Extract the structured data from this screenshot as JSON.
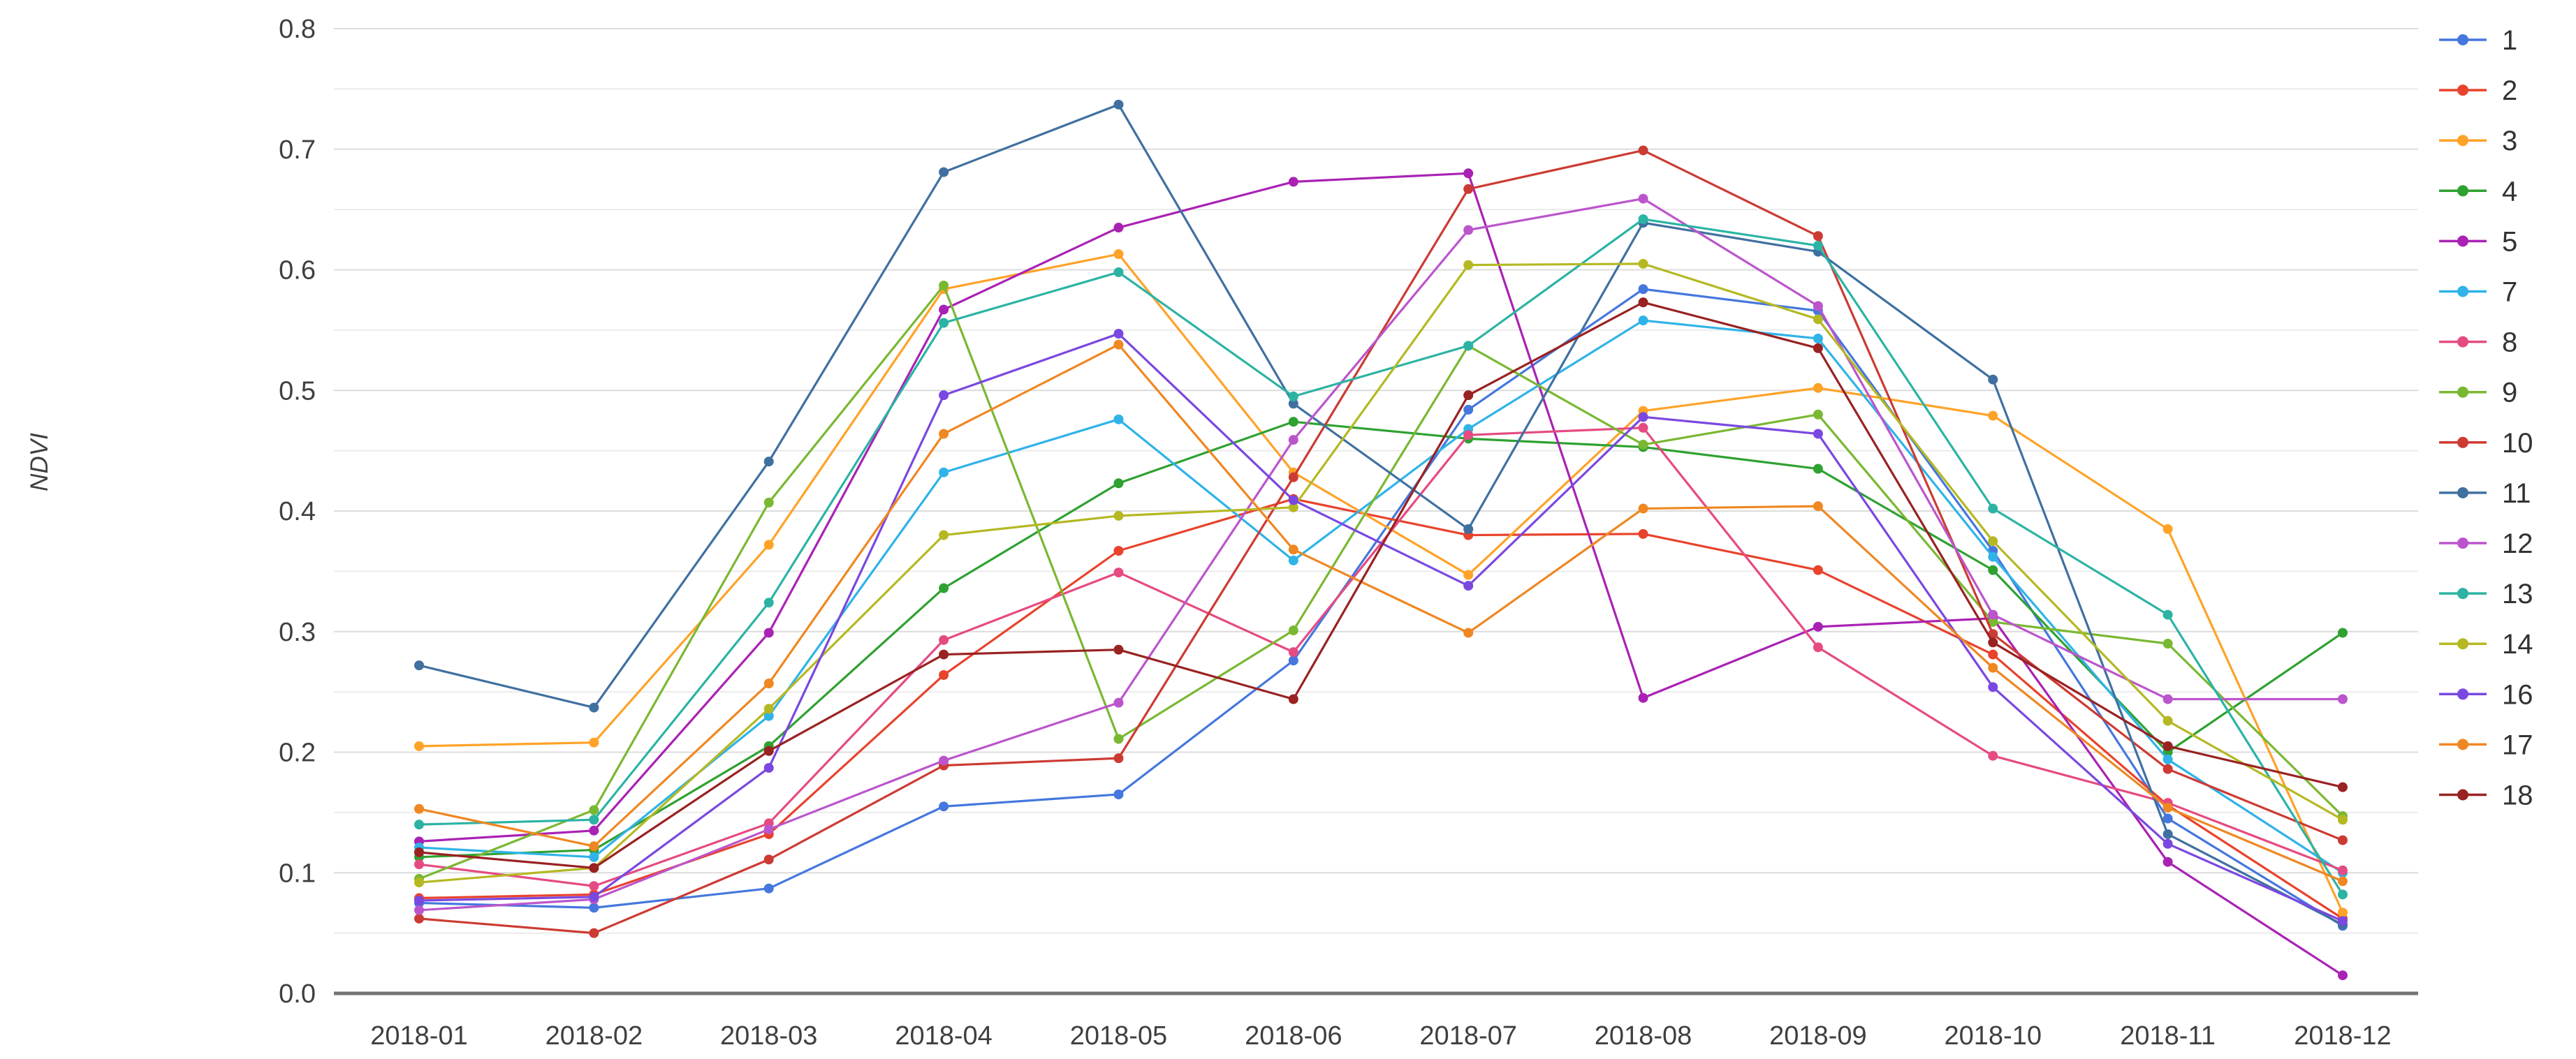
{
  "chart_data": {
    "type": "line",
    "title": "",
    "xlabel": "",
    "ylabel": "NDVI",
    "ylim": [
      0.0,
      0.8
    ],
    "ytick_step": 0.1,
    "minor_grid_step": 0.05,
    "grid": true,
    "legend_position": "right",
    "axis_color": "#737373",
    "major_grid_color": "#dcdcdc",
    "minor_grid_color": "#ebebeb",
    "categories": [
      "2018-01",
      "2018-02",
      "2018-03",
      "2018-04",
      "2018-05",
      "2018-06",
      "2018-07",
      "2018-08",
      "2018-09",
      "2018-10",
      "2018-11",
      "2018-12"
    ],
    "yticks": [
      "0.0",
      "0.1",
      "0.2",
      "0.3",
      "0.4",
      "0.5",
      "0.6",
      "0.7",
      "0.8"
    ],
    "series": [
      {
        "name": "1",
        "color": "#4577de",
        "values": [
          0.075,
          0.071,
          0.087,
          0.155,
          0.165,
          0.276,
          0.484,
          0.584,
          0.566,
          0.367,
          0.145,
          0.056
        ]
      },
      {
        "name": "2",
        "color": "#e8432c",
        "values": [
          0.079,
          0.082,
          0.132,
          0.264,
          0.367,
          0.41,
          0.38,
          0.381,
          0.351,
          0.281,
          0.156,
          0.062
        ]
      },
      {
        "name": "3",
        "color": "#ffa228",
        "values": [
          0.205,
          0.208,
          0.372,
          0.584,
          0.613,
          0.432,
          0.347,
          0.483,
          0.502,
          0.479,
          0.385,
          0.067
        ]
      },
      {
        "name": "4",
        "color": "#2fa132",
        "values": [
          0.113,
          0.119,
          0.205,
          0.336,
          0.423,
          0.474,
          0.46,
          0.453,
          0.435,
          0.351,
          0.2,
          0.299
        ]
      },
      {
        "name": "5",
        "color": "#a922b4",
        "values": [
          0.126,
          0.135,
          0.299,
          0.567,
          0.635,
          0.673,
          0.68,
          0.245,
          0.304,
          0.311,
          0.109,
          0.015
        ]
      },
      {
        "name": "7",
        "color": "#2fb3e8",
        "values": [
          0.121,
          0.113,
          0.23,
          0.432,
          0.476,
          0.359,
          0.468,
          0.558,
          0.543,
          0.362,
          0.194,
          0.1
        ]
      },
      {
        "name": "8",
        "color": "#e54b82",
        "values": [
          0.107,
          0.089,
          0.141,
          0.293,
          0.349,
          0.283,
          0.463,
          0.469,
          0.287,
          0.197,
          0.158,
          0.102
        ]
      },
      {
        "name": "9",
        "color": "#7ab832",
        "values": [
          0.095,
          0.152,
          0.407,
          0.587,
          0.211,
          0.301,
          0.537,
          0.455,
          0.48,
          0.308,
          0.29,
          0.147
        ]
      },
      {
        "name": "10",
        "color": "#cc3b33",
        "values": [
          0.062,
          0.05,
          0.111,
          0.189,
          0.195,
          0.428,
          0.667,
          0.699,
          0.628,
          0.298,
          0.186,
          0.127
        ]
      },
      {
        "name": "11",
        "color": "#4070a0",
        "values": [
          0.272,
          0.237,
          0.441,
          0.681,
          0.737,
          0.489,
          0.385,
          0.639,
          0.615,
          0.509,
          0.132,
          0.057
        ]
      },
      {
        "name": "12",
        "color": "#bb55cc",
        "values": [
          0.069,
          0.078,
          0.136,
          0.193,
          0.241,
          0.459,
          0.633,
          0.659,
          0.57,
          0.314,
          0.244,
          0.244
        ]
      },
      {
        "name": "13",
        "color": "#2cb3a4",
        "values": [
          0.14,
          0.144,
          0.324,
          0.556,
          0.598,
          0.495,
          0.537,
          0.642,
          0.62,
          0.402,
          0.314,
          0.082
        ]
      },
      {
        "name": "14",
        "color": "#b5b822",
        "values": [
          0.092,
          0.104,
          0.236,
          0.38,
          0.396,
          0.403,
          0.604,
          0.605,
          0.559,
          0.375,
          0.226,
          0.144
        ]
      },
      {
        "name": "16",
        "color": "#7a48e0",
        "values": [
          0.077,
          0.08,
          0.187,
          0.496,
          0.547,
          0.409,
          0.338,
          0.478,
          0.464,
          0.254,
          0.124,
          0.06
        ]
      },
      {
        "name": "17",
        "color": "#ef8722",
        "values": [
          0.153,
          0.122,
          0.257,
          0.464,
          0.538,
          0.368,
          0.299,
          0.402,
          0.404,
          0.27,
          0.154,
          0.093
        ]
      },
      {
        "name": "18",
        "color": "#992222",
        "values": [
          0.117,
          0.104,
          0.201,
          0.281,
          0.285,
          0.244,
          0.496,
          0.573,
          0.535,
          0.291,
          0.205,
          0.171
        ]
      }
    ]
  }
}
